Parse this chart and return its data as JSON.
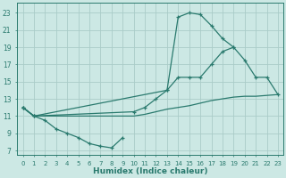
{
  "xlabel": "Humidex (Indice chaleur)",
  "bg_color": "#cce8e4",
  "line_color": "#2a7a6e",
  "grid_color": "#aaccc8",
  "xlim": [
    -0.5,
    23.5
  ],
  "ylim": [
    6.5,
    24.2
  ],
  "xticks": [
    0,
    1,
    2,
    3,
    4,
    5,
    6,
    7,
    8,
    9,
    10,
    11,
    12,
    13,
    14,
    15,
    16,
    17,
    18,
    19,
    20,
    21,
    22,
    23
  ],
  "yticks": [
    7,
    9,
    11,
    13,
    15,
    17,
    19,
    21,
    23
  ],
  "lines": [
    {
      "x": [
        0,
        1,
        2,
        3,
        4,
        5,
        6,
        7,
        8,
        9
      ],
      "y": [
        12,
        11,
        10.5,
        9.5,
        9.0,
        8.5,
        7.8,
        7.5,
        7.3,
        8.5
      ]
    },
    {
      "comment": "upper peak line: (0,12)->(1,11)->(13,14)->(14,22.5)->(15,23)->(16,22.8)->(17,21.5)->(18,20)->(19,19)",
      "x": [
        0,
        1,
        13,
        14,
        15,
        16,
        17,
        18,
        19
      ],
      "y": [
        12,
        11,
        14,
        22.5,
        23,
        22.8,
        21.5,
        20,
        19
      ]
    },
    {
      "comment": "middle diagonal line: (0,12)->(1,11)->(10,11.5)->(11,12)->(12,13)->(13,14)->(14,15.5)->(15,15.5)->(16,15.5)->(17,17)->(18,18.5)->(19,19)->(20,17.5)->(21,15.5)->(22,15.5)->(23,13.5)",
      "x": [
        0,
        1,
        10,
        11,
        12,
        13,
        14,
        15,
        16,
        17,
        18,
        19,
        20,
        21,
        22,
        23
      ],
      "y": [
        12,
        11,
        11.5,
        12,
        13,
        14,
        15.5,
        15.5,
        15.5,
        17,
        18.5,
        19,
        17.5,
        15.5,
        15.5,
        13.5
      ]
    },
    {
      "x": [
        0,
        1,
        10,
        11,
        12,
        13,
        14,
        15,
        16,
        17,
        18,
        19,
        20,
        21,
        22,
        23
      ],
      "y": [
        12,
        11,
        11.0,
        11.2,
        11.5,
        11.8,
        12.0,
        12.2,
        12.5,
        12.8,
        13.0,
        13.2,
        13.3,
        13.3,
        13.4,
        13.5
      ]
    }
  ],
  "figsize": [
    3.2,
    2.0
  ],
  "dpi": 100
}
